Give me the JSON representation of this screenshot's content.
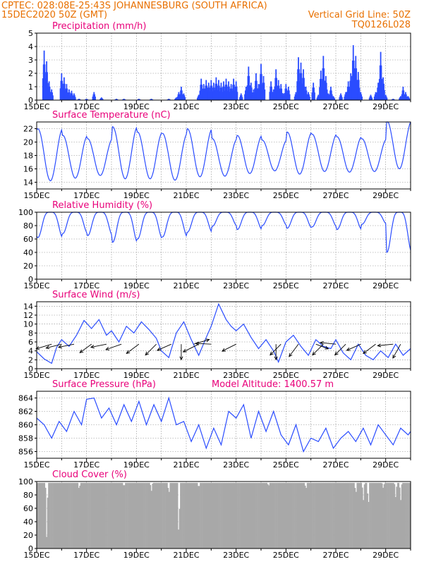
{
  "header": {
    "line1_left": "CPTEC:   028:08E-25:43S   JOHANNESBURG (SOUTH AFRICA)",
    "line2_left": "15DEC2020 50Z (GMT)",
    "line2_right": "Vertical Grid Line: 50Z",
    "line3_right": "TQ0126L028"
  },
  "colors": {
    "header": "#e87000",
    "title": "#e8007a",
    "series": "#2a4cff",
    "cloud": "#a8a8a8",
    "grid": "#888888"
  },
  "chart_data": [
    {
      "type": "bar",
      "title": "Precipitation (mm/h)",
      "x_tick_labels": [
        "15DEC",
        "17DEC",
        "19DEC",
        "21DEC",
        "23DEC",
        "25DEC",
        "27DEC",
        "29DEC"
      ],
      "xlim_days": [
        15,
        30
      ],
      "ylim": [
        0,
        5
      ],
      "y_ticks": [
        0,
        1,
        2,
        3,
        4,
        5
      ],
      "grid": true,
      "x_days": [
        15.3,
        15.4,
        15.5,
        15.6,
        16.0,
        16.1,
        16.2,
        16.3,
        16.4,
        16.5,
        16.7,
        17.0,
        17.3,
        17.6,
        18.2,
        18.5,
        19.1,
        19.6,
        20.3,
        20.6,
        20.7,
        20.8,
        20.9,
        21.5,
        21.6,
        21.7,
        21.8,
        21.9,
        22.0,
        22.1,
        22.2,
        22.3,
        22.4,
        22.5,
        22.6,
        22.7,
        22.8,
        22.9,
        23.0,
        23.2,
        23.4,
        23.5,
        23.6,
        23.7,
        23.8,
        23.9,
        24.0,
        24.1,
        24.4,
        24.5,
        24.6,
        24.7,
        24.8,
        24.9,
        25.0,
        25.1,
        25.4,
        25.5,
        25.6,
        25.7,
        25.8,
        25.9,
        26.1,
        26.3,
        26.4,
        26.5,
        26.6,
        26.7,
        26.8,
        26.9,
        27.2,
        27.4,
        27.5,
        27.6,
        27.7,
        27.8,
        27.9,
        28.0,
        28.4,
        28.6,
        28.7,
        28.8,
        28.9,
        29.0,
        29.3,
        29.6,
        29.7,
        29.8,
        29.9
      ],
      "values": [
        3.7,
        2.9,
        1.4,
        0.8,
        2.0,
        1.7,
        1.2,
        0.8,
        0.7,
        0.5,
        0.1,
        0.1,
        0.6,
        0.2,
        0.1,
        0.1,
        0.1,
        0.1,
        0.1,
        0.2,
        0.6,
        1.0,
        0.5,
        0.4,
        1.6,
        1.2,
        1.5,
        1.3,
        1.5,
        1.3,
        1.7,
        1.5,
        1.3,
        1.4,
        1.6,
        1.4,
        1.2,
        1.6,
        1.4,
        0.5,
        1.0,
        2.5,
        1.3,
        0.8,
        2.0,
        1.2,
        2.7,
        1.8,
        1.4,
        0.8,
        2.3,
        1.5,
        1.2,
        0.5,
        1.2,
        1.0,
        0.6,
        3.2,
        2.8,
        2.3,
        1.0,
        0.6,
        1.3,
        0.4,
        2.2,
        3.3,
        1.8,
        0.5,
        1.0,
        0.3,
        0.5,
        0.6,
        1.4,
        2.0,
        4.1,
        3.3,
        2.1,
        0.6,
        0.4,
        0.6,
        1.3,
        3.6,
        1.7,
        0.4,
        0.1,
        0.3,
        1.0,
        0.6,
        0.3
      ]
    },
    {
      "type": "line",
      "title": "Surface Temperature (nC)",
      "x_tick_labels": [
        "15DEC",
        "17DEC",
        "19DEC",
        "21DEC",
        "23DEC",
        "25DEC",
        "27DEC",
        "29DEC"
      ],
      "xlim_days": [
        15,
        30
      ],
      "ylim": [
        13,
        23
      ],
      "y_ticks": [
        14,
        16,
        18,
        20,
        22
      ],
      "grid": true,
      "daily_min": [
        14.2,
        14.6,
        15.0,
        14.5,
        14.5,
        14.3,
        14.8,
        14.9,
        15.3,
        15.7,
        15.2,
        15.6,
        15.5,
        15.6,
        16.0
      ],
      "daily_max": [
        22.0,
        21.0,
        20.5,
        22.3,
        21.5,
        21.3,
        22.0,
        20.5,
        21.0,
        20.3,
        21.5,
        21.2,
        20.8,
        20.5,
        23.2
      ]
    },
    {
      "type": "line",
      "title": "Relative Humidity (%)",
      "x_tick_labels": [
        "15DEC",
        "17DEC",
        "19DEC",
        "21DEC",
        "23DEC",
        "25DEC",
        "27DEC",
        "29DEC"
      ],
      "xlim_days": [
        15,
        30
      ],
      "ylim": [
        0,
        100
      ],
      "y_ticks": [
        0,
        20,
        40,
        60,
        80,
        100
      ],
      "grid": true,
      "daily_min": [
        62,
        68,
        65,
        55,
        60,
        63,
        70,
        79,
        74,
        80,
        76,
        78,
        74,
        82,
        40
      ]
    },
    {
      "type": "line",
      "title": "Surface Wind (m/s)",
      "x_tick_labels": [
        "15DEC",
        "17DEC",
        "19DEC",
        "21DEC",
        "23DEC",
        "25DEC",
        "27DEC",
        "29DEC"
      ],
      "xlim_days": [
        15,
        30
      ],
      "ylim": [
        0,
        15
      ],
      "y_ticks": [
        0,
        2,
        4,
        6,
        8,
        10,
        12,
        14
      ],
      "grid": true,
      "x_days": [
        15.0,
        15.3,
        15.6,
        15.8,
        16.0,
        16.3,
        16.6,
        16.9,
        17.2,
        17.5,
        17.8,
        18.0,
        18.3,
        18.6,
        18.9,
        19.2,
        19.5,
        19.8,
        20.0,
        20.3,
        20.6,
        20.9,
        21.2,
        21.5,
        21.8,
        22.0,
        22.3,
        22.6,
        22.8,
        23.0,
        23.3,
        23.6,
        23.9,
        24.2,
        24.5,
        24.7,
        25.0,
        25.3,
        25.6,
        25.9,
        26.2,
        26.5,
        26.8,
        27.0,
        27.3,
        27.6,
        27.9,
        28.2,
        28.5,
        28.8,
        29.1,
        29.4,
        29.7,
        30.0
      ],
      "values": [
        3.8,
        2.2,
        1.2,
        4.8,
        6.5,
        5.0,
        7.5,
        10.8,
        9.0,
        11.0,
        7.5,
        8.5,
        6.0,
        9.5,
        8.0,
        10.5,
        8.8,
        6.8,
        4.0,
        2.5,
        8.0,
        10.5,
        6.5,
        3.0,
        7.0,
        9.5,
        14.5,
        11.0,
        9.5,
        8.5,
        10.0,
        7.0,
        4.5,
        6.5,
        4.0,
        1.5,
        6.0,
        7.5,
        5.0,
        3.0,
        6.5,
        5.0,
        4.5,
        6.5,
        3.5,
        2.0,
        5.5,
        3.0,
        2.0,
        4.0,
        2.5,
        5.5,
        3.0,
        4.5
      ],
      "vectors": [
        {
          "day": 15.6,
          "u": 1.0,
          "v": 0.3
        },
        {
          "day": 16.0,
          "u": 1.0,
          "v": 0.25
        },
        {
          "day": 16.5,
          "u": 1.0,
          "v": 0.2
        },
        {
          "day": 17.2,
          "u": 0.75,
          "v": 0.55
        },
        {
          "day": 17.8,
          "u": 1.0,
          "v": 0.2
        },
        {
          "day": 18.4,
          "u": 1.0,
          "v": 0.35
        },
        {
          "day": 19.1,
          "u": 0.8,
          "v": 0.6
        },
        {
          "day": 19.8,
          "u": 0.7,
          "v": 0.7
        },
        {
          "day": 20.4,
          "u": 0.9,
          "v": 0.4
        },
        {
          "day": 20.8,
          "u": 0.0,
          "v": 1.0
        },
        {
          "day": 21.3,
          "u": -1.0,
          "v": -0.3
        },
        {
          "day": 21.5,
          "u": 1.0,
          "v": 0.5
        },
        {
          "day": 22.0,
          "u": 1.0,
          "v": -0.05
        },
        {
          "day": 23.0,
          "u": 0.9,
          "v": 0.45
        },
        {
          "day": 24.6,
          "u": 0.0,
          "v": 1.0
        },
        {
          "day": 24.8,
          "u": 0.7,
          "v": 0.7
        },
        {
          "day": 25.5,
          "u": 0.6,
          "v": 0.8
        },
        {
          "day": 26.2,
          "u": -0.8,
          "v": 0.3
        },
        {
          "day": 26.5,
          "u": 0.7,
          "v": 0.7
        },
        {
          "day": 27.0,
          "u": 1.0,
          "v": -0.1
        },
        {
          "day": 27.4,
          "u": 0.7,
          "v": 0.7
        },
        {
          "day": 28.0,
          "u": 0.9,
          "v": 0.4
        },
        {
          "day": 28.6,
          "u": 0.8,
          "v": 0.6
        },
        {
          "day": 29.3,
          "u": 1.0,
          "v": 0.1
        },
        {
          "day": 29.6,
          "u": 0.5,
          "v": 0.9
        }
      ]
    },
    {
      "type": "line",
      "title": "Surface Pressure (hPa)",
      "annotation": "Model Altitude: 1400.57 m",
      "x_tick_labels": [
        "15DEC",
        "17DEC",
        "19DEC",
        "21DEC",
        "23DEC",
        "25DEC",
        "27DEC",
        "29DEC"
      ],
      "xlim_days": [
        15,
        30
      ],
      "ylim": [
        855,
        865
      ],
      "y_ticks": [
        856,
        858,
        860,
        862,
        864
      ],
      "grid": true,
      "x_days": [
        15.0,
        15.3,
        15.6,
        15.9,
        16.2,
        16.5,
        16.8,
        17.0,
        17.3,
        17.6,
        17.9,
        18.2,
        18.5,
        18.8,
        19.1,
        19.4,
        19.7,
        20.0,
        20.3,
        20.6,
        20.9,
        21.2,
        21.5,
        21.8,
        22.1,
        22.4,
        22.7,
        23.0,
        23.3,
        23.6,
        23.9,
        24.2,
        24.5,
        24.8,
        25.1,
        25.4,
        25.7,
        26.0,
        26.3,
        26.6,
        26.9,
        27.2,
        27.5,
        27.8,
        28.1,
        28.4,
        28.7,
        29.0,
        29.3,
        29.6,
        29.9,
        30.0
      ],
      "values": [
        861.0,
        860.0,
        858.0,
        860.5,
        859.0,
        862.0,
        860.0,
        863.8,
        864.0,
        861.0,
        862.5,
        860.0,
        863.0,
        860.5,
        863.5,
        860.0,
        863.0,
        860.5,
        864.0,
        860.0,
        860.5,
        857.5,
        860.0,
        856.5,
        859.5,
        857.0,
        862.0,
        861.0,
        863.0,
        858.0,
        862.0,
        859.0,
        862.0,
        858.5,
        857.0,
        860.0,
        856.0,
        858.0,
        857.5,
        859.5,
        856.5,
        858.0,
        859.0,
        857.5,
        859.5,
        857.0,
        860.0,
        858.5,
        857.0,
        859.5,
        858.5,
        859.0
      ]
    },
    {
      "type": "bar",
      "title": "Cloud Cover (%)",
      "x_tick_labels": [
        "15DEC",
        "17DEC",
        "19DEC",
        "21DEC",
        "23DEC",
        "25DEC",
        "27DEC",
        "29DEC"
      ],
      "xlim_days": [
        15,
        30
      ],
      "ylim": [
        0,
        100
      ],
      "y_ticks": [
        0,
        20,
        40,
        60,
        80,
        100
      ],
      "grid": true,
      "typical_value": 98,
      "dips": [
        {
          "day": 15.4,
          "value": 10
        },
        {
          "day": 16.7,
          "value": 88
        },
        {
          "day": 18.5,
          "value": 92
        },
        {
          "day": 19.6,
          "value": 85
        },
        {
          "day": 20.3,
          "value": 80
        },
        {
          "day": 20.7,
          "value": 5
        },
        {
          "day": 21.5,
          "value": 90
        },
        {
          "day": 24.3,
          "value": 93
        },
        {
          "day": 25.8,
          "value": 88
        },
        {
          "day": 27.8,
          "value": 80
        },
        {
          "day": 28.1,
          "value": 70
        },
        {
          "day": 28.3,
          "value": 60
        },
        {
          "day": 28.9,
          "value": 90
        },
        {
          "day": 29.4,
          "value": 75
        },
        {
          "day": 29.6,
          "value": 70
        }
      ]
    }
  ]
}
